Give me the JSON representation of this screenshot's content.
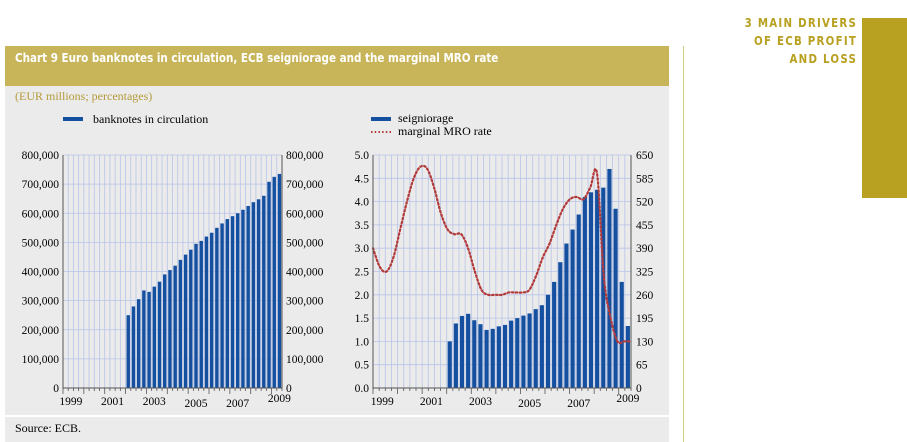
{
  "section_heading": [
    "3 MAIN DRIVERS",
    "OF ECB PROFIT",
    "AND LOSS"
  ],
  "colors": {
    "gold": "#b8a020",
    "title_bar": "#c8b55a",
    "bar": "#1550a0",
    "mro_line": "#b23a3a",
    "grid": "#b8c4e8",
    "panel": "#ebebeb"
  },
  "chart_title": "Chart 9 Euro banknotes in circulation, ECB seigniorage and the marginal MRO rate",
  "units": "(EUR millions; percentages)",
  "source": "Source: ECB.",
  "chart_data": [
    {
      "type": "bar",
      "title": "banknotes in circulation",
      "legend": [
        "banknotes in circulation"
      ],
      "x_tick_labels": [
        "1999",
        "2001",
        "2003",
        "2005",
        "2007",
        "2009"
      ],
      "x_range_quarters": [
        "1999Q1",
        "2009Q2"
      ],
      "y_left_ticks": [
        "0",
        "100,000",
        "200,000",
        "300,000",
        "400,000",
        "500,000",
        "600,000",
        "700,000",
        "800,000"
      ],
      "y_right_ticks": [
        "0",
        "100,000",
        "200,000",
        "300,000",
        "400,000",
        "500,000",
        "600,000",
        "700,000",
        "800,000"
      ],
      "ylim": [
        0,
        800000
      ],
      "grid": true,
      "series": [
        {
          "name": "banknotes in circulation",
          "start_quarter": "2002Q1",
          "values": [
            250000,
            280000,
            305000,
            335000,
            330000,
            348000,
            365000,
            390000,
            405000,
            420000,
            440000,
            458000,
            475000,
            495000,
            505000,
            520000,
            533000,
            550000,
            565000,
            580000,
            590000,
            600000,
            612000,
            625000,
            638000,
            648000,
            660000,
            708000,
            725000,
            735000,
            748000,
            752000
          ]
        }
      ]
    },
    {
      "type": "bar+line",
      "legend": [
        "seigniorage",
        "marginal MRO rate"
      ],
      "x_tick_labels": [
        "1999",
        "2001",
        "2003",
        "2005",
        "2007",
        "2009"
      ],
      "x_range_quarters": [
        "1999Q1",
        "2009Q2"
      ],
      "y_left_ticks": [
        "0.0",
        "0.5",
        "1.0",
        "1.5",
        "2.0",
        "2.5",
        "3.0",
        "3.5",
        "4.0",
        "4.5",
        "5.0"
      ],
      "y_left_lim": [
        0,
        5
      ],
      "y_right_ticks": [
        "0",
        "65",
        "130",
        "195",
        "260",
        "325",
        "390",
        "455",
        "520",
        "585",
        "650"
      ],
      "y_right_lim": [
        0,
        650
      ],
      "grid": true,
      "series": [
        {
          "name": "seigniorage",
          "axis": "right",
          "start_quarter": "2002Q1",
          "values": [
            130,
            180,
            201,
            207,
            189,
            178,
            162,
            165,
            172,
            176,
            188,
            195,
            202,
            208,
            220,
            231,
            260,
            296,
            351,
            403,
            442,
            484,
            533,
            546,
            553,
            559,
            611,
            500,
            296,
            173,
            156,
            156
          ]
        },
        {
          "name": "marginal MRO rate",
          "axis": "left",
          "start_quarter": "1999Q1",
          "values": [
            3.0,
            2.6,
            2.5,
            2.8,
            3.4,
            4.0,
            4.5,
            4.75,
            4.7,
            4.3,
            3.75,
            3.4,
            3.3,
            3.3,
            3.0,
            2.5,
            2.1,
            2.0,
            2.0,
            2.0,
            2.05,
            2.05,
            2.05,
            2.1,
            2.4,
            2.8,
            3.1,
            3.5,
            3.85,
            4.05,
            4.1,
            4.05,
            4.3,
            4.6,
            2.4,
            1.5,
            1.0,
            1.0,
            1.0
          ]
        }
      ]
    }
  ]
}
